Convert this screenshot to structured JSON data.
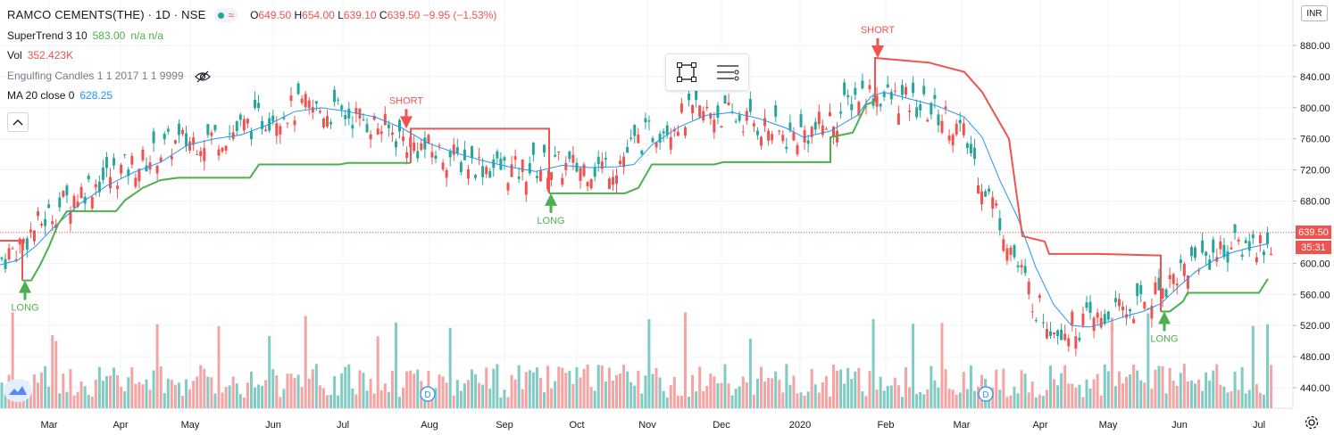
{
  "symbol": {
    "title": "RAMCO CEMENTS(THE) · 1D · NSE"
  },
  "ohlc": {
    "o_label": "O",
    "o": "649.50",
    "h_label": "H",
    "h": "654.00",
    "l_label": "L",
    "l": "639.10",
    "c_label": "C",
    "c": "639.50",
    "change": "−9.95 (−1.53%)"
  },
  "indicators": [
    {
      "name": "SuperTrend 3 10",
      "value": "583.00",
      "extra": "n/a  n/a",
      "color": "#4caf50"
    },
    {
      "name": "Vol",
      "value": "352.423K",
      "color": "#ef5350"
    },
    {
      "name": "Engulfing Candles 1 1 2017 1 1 9999",
      "value": "",
      "color": "#787b86"
    },
    {
      "name": "MA 20 close 0",
      "value": "628.25",
      "color": "#2196f3"
    }
  ],
  "currency": "INR",
  "last_price": "639.50",
  "countdown": "35:31",
  "icons": {
    "eye": "eye-crossed-icon",
    "collapse": "chevron-up-icon",
    "gear": "gear-icon",
    "logo": "tradingview-cloud-icon",
    "rect": "rectangle-tool-icon",
    "lines": "object-tree-icon"
  },
  "colors": {
    "up": "#26a69a",
    "down": "#ef5350",
    "st_up": "#4caf50",
    "st_down": "#f05350",
    "ma": "#2196f3",
    "vol_up": "#80cbc4",
    "vol_down": "#f5a4a4",
    "price_line": "#ef5350"
  },
  "chart_data": {
    "type": "candlestick",
    "price_axis": {
      "ticks": [
        440,
        480,
        520,
        560,
        600,
        640,
        680,
        720,
        760,
        800,
        840,
        880
      ]
    },
    "time_axis": {
      "labels": [
        "Mar",
        "Apr",
        "May",
        "Jun",
        "Jul",
        "Aug",
        "Sep",
        "Oct",
        "Nov",
        "Dec",
        "2020",
        "Feb",
        "Mar",
        "Apr",
        "May",
        "Jun",
        "Jul"
      ]
    },
    "series": [
      {
        "name": "SuperTrend 3 10",
        "type": "line",
        "values": [
          [
            0,
            629
          ],
          [
            25,
            629
          ],
          [
            25,
            578
          ],
          [
            35,
            578
          ],
          [
            45,
            598
          ],
          [
            55,
            622
          ],
          [
            65,
            650
          ],
          [
            75,
            667
          ],
          [
            130,
            667
          ],
          [
            140,
            681
          ],
          [
            160,
            697
          ],
          [
            180,
            707
          ],
          [
            200,
            710
          ],
          [
            280,
            710
          ],
          [
            290,
            727
          ],
          [
            380,
            727
          ],
          [
            390,
            729
          ],
          [
            460,
            729
          ],
          [
            460,
            773
          ],
          [
            600,
            773
          ],
          [
            615,
            773
          ],
          [
            615,
            690
          ],
          [
            700,
            690
          ],
          [
            715,
            697
          ],
          [
            730,
            727
          ],
          [
            800,
            727
          ],
          [
            810,
            730
          ],
          [
            930,
            730
          ],
          [
            930,
            762
          ],
          [
            955,
            768
          ],
          [
            970,
            804
          ],
          [
            980,
            808
          ],
          [
            980,
            864
          ],
          [
            1040,
            858
          ],
          [
            1080,
            846
          ],
          [
            1100,
            820
          ],
          [
            1130,
            760
          ],
          [
            1145,
            635
          ],
          [
            1170,
            628
          ],
          [
            1175,
            612
          ],
          [
            1230,
            612
          ],
          [
            1300,
            610
          ],
          [
            1300,
            538
          ],
          [
            1310,
            538
          ],
          [
            1325,
            551
          ],
          [
            1330,
            562
          ],
          [
            1410,
            562
          ],
          [
            1420,
            580
          ]
        ]
      },
      {
        "name": "MA 20 close 0",
        "type": "line",
        "values": [
          [
            0,
            598
          ],
          [
            20,
            604
          ],
          [
            40,
            622
          ],
          [
            60,
            646
          ],
          [
            90,
            677
          ],
          [
            120,
            700
          ],
          [
            150,
            717
          ],
          [
            180,
            730
          ],
          [
            210,
            752
          ],
          [
            240,
            760
          ],
          [
            270,
            765
          ],
          [
            300,
            778
          ],
          [
            330,
            795
          ],
          [
            360,
            800
          ],
          [
            390,
            795
          ],
          [
            420,
            788
          ],
          [
            450,
            774
          ],
          [
            480,
            754
          ],
          [
            510,
            742
          ],
          [
            540,
            732
          ],
          [
            570,
            724
          ],
          [
            600,
            718
          ],
          [
            630,
            726
          ],
          [
            660,
            723
          ],
          [
            690,
            724
          ],
          [
            710,
            727
          ],
          [
            730,
            752
          ],
          [
            760,
            775
          ],
          [
            790,
            790
          ],
          [
            820,
            794
          ],
          [
            850,
            786
          ],
          [
            880,
            774
          ],
          [
            900,
            762
          ],
          [
            930,
            770
          ],
          [
            960,
            790
          ],
          [
            975,
            814
          ],
          [
            990,
            820
          ],
          [
            1020,
            811
          ],
          [
            1050,
            802
          ],
          [
            1080,
            788
          ],
          [
            1100,
            762
          ],
          [
            1120,
            706
          ],
          [
            1140,
            658
          ],
          [
            1160,
            595
          ],
          [
            1180,
            547
          ],
          [
            1200,
            520
          ],
          [
            1220,
            518
          ],
          [
            1240,
            524
          ],
          [
            1260,
            532
          ],
          [
            1280,
            538
          ],
          [
            1300,
            548
          ],
          [
            1320,
            570
          ],
          [
            1340,
            590
          ],
          [
            1360,
            604
          ],
          [
            1380,
            614
          ],
          [
            1400,
            620
          ],
          [
            1420,
            625
          ]
        ]
      }
    ],
    "markers": [
      {
        "type": "LONG",
        "x_label": "Feb 2019",
        "price": 578
      },
      {
        "type": "SHORT",
        "x_label": "Jul 2019",
        "price": 773
      },
      {
        "type": "LONG",
        "x_label": "Sep 2019",
        "price": 690
      },
      {
        "type": "SHORT",
        "x_label": "Jan 2020",
        "price": 864
      },
      {
        "type": "LONG",
        "x_label": "May 2020",
        "price": 538
      }
    ],
    "marker_labels": {
      "long": "LONG",
      "short": "SHORT"
    },
    "events": [
      {
        "label": "D",
        "x_label": "Aug"
      },
      {
        "label": "D",
        "x_label": "Mar"
      }
    ],
    "price_range": [
      420,
      900
    ]
  }
}
